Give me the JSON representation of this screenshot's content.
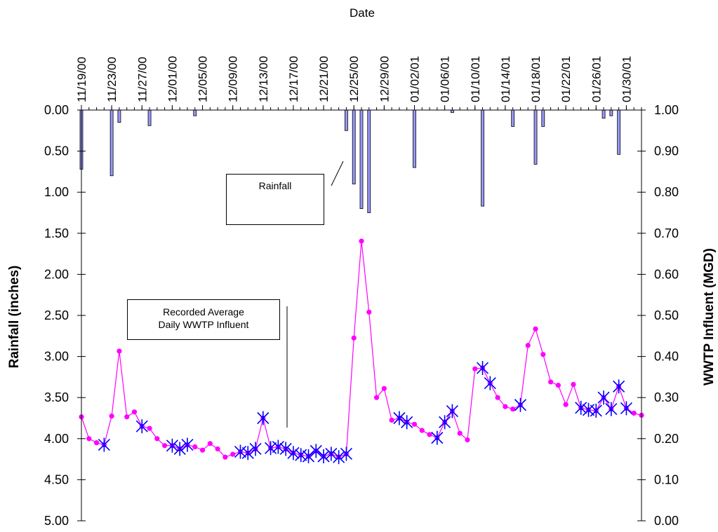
{
  "chart_data": {
    "type": "line",
    "xlabel": "Date",
    "ylabel_left": "Rainfall (inches)",
    "ylabel_right": "WWTP Influent (MGD)",
    "x_tick_labels": [
      "11/19/00",
      "11/23/00",
      "11/27/00",
      "12/01/00",
      "12/05/00",
      "12/09/00",
      "12/13/00",
      "12/17/00",
      "12/21/00",
      "12/25/00",
      "12/29/00",
      "01/02/01",
      "01/06/01",
      "01/10/01",
      "01/14/01",
      "01/18/01",
      "01/22/01",
      "01/26/01",
      "01/30/01"
    ],
    "x_start": "11/19/00",
    "x_end": "02/01/01",
    "y_left": {
      "min": 0,
      "max": 5,
      "inverted": true,
      "ticks": [
        "0.00",
        "0.50",
        "1.00",
        "1.50",
        "2.00",
        "2.50",
        "3.00",
        "3.50",
        "4.00",
        "4.50",
        "5.00"
      ]
    },
    "y_right": {
      "min": 0,
      "max": 1,
      "ticks": [
        "1.00",
        "0.90",
        "0.80",
        "0.70",
        "0.60",
        "0.50",
        "0.40",
        "0.30",
        "0.20",
        "0.10",
        "0.00"
      ]
    },
    "rainfall": {
      "axis": "left",
      "style": "bar",
      "color": "#9999ff",
      "dates": [
        "11/19/00",
        "11/23/00",
        "11/24/00",
        "11/28/00",
        "12/04/00",
        "12/24/00",
        "12/25/00",
        "12/26/00",
        "12/27/00",
        "01/02/01",
        "01/07/01",
        "01/11/01",
        "01/15/01",
        "01/18/01",
        "01/19/01",
        "01/27/01",
        "01/28/01",
        "01/29/01"
      ],
      "values": [
        0.72,
        0.8,
        0.15,
        0.19,
        0.07,
        0.25,
        0.9,
        1.2,
        1.25,
        0.7,
        0.03,
        1.17,
        0.2,
        0.66,
        0.2,
        0.1,
        0.07,
        0.54
      ]
    },
    "influent": {
      "axis": "right",
      "style": "line-marker",
      "color": "#ff00ff",
      "dates": [
        "11/19/00",
        "11/20/00",
        "11/21/00",
        "11/22/00",
        "11/23/00",
        "11/24/00",
        "11/25/00",
        "11/26/00",
        "11/27/00",
        "11/28/00",
        "11/29/00",
        "11/30/00",
        "12/01/00",
        "12/02/00",
        "12/03/00",
        "12/04/00",
        "12/05/00",
        "12/06/00",
        "12/07/00",
        "12/08/00",
        "12/09/00",
        "12/10/00",
        "12/11/00",
        "12/12/00",
        "12/13/00",
        "12/14/00",
        "12/15/00",
        "12/16/00",
        "12/17/00",
        "12/18/00",
        "12/19/00",
        "12/20/00",
        "12/21/00",
        "12/22/00",
        "12/23/00",
        "12/24/00",
        "12/25/00",
        "12/26/00",
        "12/27/00",
        "12/28/00",
        "12/29/00",
        "12/30/00",
        "12/31/00",
        "01/01/01",
        "01/02/01",
        "01/03/01",
        "01/04/01",
        "01/05/01",
        "01/06/01",
        "01/07/01",
        "01/08/01",
        "01/09/01",
        "01/10/01",
        "01/11/01",
        "01/12/01",
        "01/13/01",
        "01/14/01",
        "01/15/01",
        "01/16/01",
        "01/17/01",
        "01/18/01",
        "01/19/01",
        "01/20/01",
        "01/21/01",
        "01/22/01",
        "01/23/01",
        "01/24/01",
        "01/25/01",
        "01/26/01",
        "01/27/01",
        "01/28/01",
        "01/29/01",
        "01/30/01",
        "01/31/01",
        "02/01/01"
      ],
      "values": [
        0.253,
        0.2,
        0.19,
        0.185,
        0.255,
        0.413,
        0.253,
        0.265,
        0.23,
        0.225,
        0.2,
        0.183,
        0.183,
        0.175,
        0.185,
        0.18,
        0.172,
        0.188,
        0.175,
        0.155,
        0.162,
        0.168,
        0.165,
        0.175,
        0.25,
        0.177,
        0.18,
        0.175,
        0.165,
        0.16,
        0.157,
        0.17,
        0.157,
        0.163,
        0.155,
        0.163,
        0.445,
        0.681,
        0.508,
        0.3,
        0.322,
        0.245,
        0.25,
        0.24,
        0.235,
        0.22,
        0.21,
        0.202,
        0.24,
        0.267,
        0.213,
        0.197,
        0.37,
        0.372,
        0.335,
        0.3,
        0.278,
        0.272,
        0.282,
        0.427,
        0.467,
        0.405,
        0.338,
        0.33,
        0.283,
        0.332,
        0.275,
        0.27,
        0.268,
        0.3,
        0.272,
        0.327,
        0.274,
        0.262,
        0.257
      ]
    },
    "recorded_dates": [
      "11/22/00",
      "11/27/00",
      "12/01/00",
      "12/02/00",
      "12/03/00",
      "12/10/00",
      "12/11/00",
      "12/12/00",
      "12/13/00",
      "12/14/00",
      "12/15/00",
      "12/16/00",
      "12/17/00",
      "12/18/00",
      "12/19/00",
      "12/20/00",
      "12/21/00",
      "12/22/00",
      "12/23/00",
      "12/24/00",
      "12/31/00",
      "01/01/01",
      "01/05/01",
      "01/06/01",
      "01/07/01",
      "01/11/01",
      "01/12/01",
      "01/16/01",
      "01/24/01",
      "01/25/01",
      "01/26/01",
      "01/27/01",
      "01/28/01",
      "01/29/01",
      "01/30/01"
    ],
    "recorded_marker_color": "#0000ff",
    "annotations": {
      "rainfall_label": "Rainfall",
      "influent_label_line1": "Recorded Average",
      "influent_label_line2": "Daily WWTP Influent"
    }
  }
}
